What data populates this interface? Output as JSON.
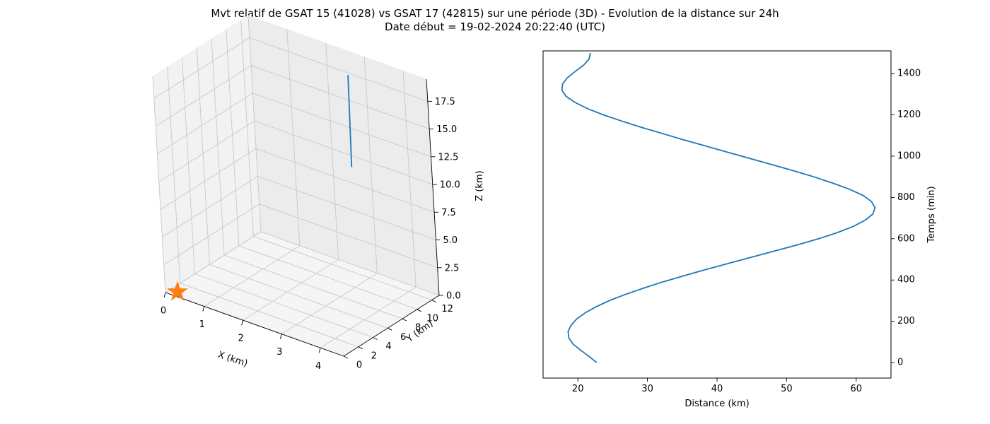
{
  "figure": {
    "title_line1": "Mvt relatif de GSAT 15 (41028) vs GSAT 17 (42815) sur une période (3D) - Evolution de la distance sur 24h",
    "title_line2": "Date début = 19-02-2024 20:22:40 (UTC)"
  },
  "chart_data": [
    {
      "type": "line3d",
      "xlabel": "X (km)",
      "ylabel": "Y (km)",
      "zlabel": "Z (km)",
      "xlim": [
        0,
        4.6
      ],
      "ylim": [
        0,
        13
      ],
      "zlim": [
        0,
        19.5
      ],
      "x_ticks": [
        0,
        1,
        2,
        3,
        4
      ],
      "y_ticks": [
        0,
        2,
        4,
        6,
        8,
        10,
        12
      ],
      "z_ticks": [
        "0.0",
        "2.5",
        "5.0",
        "7.5",
        "10.0",
        "12.5",
        "15.0",
        "17.5"
      ],
      "grid": true,
      "series": [
        {
          "x": [
            4.3,
            2.9
          ],
          "y": [
            4.0,
            11.2
          ],
          "z": [
            15.0,
            18.5
          ],
          "color": "#1f77b4"
        }
      ],
      "marker": {
        "x": 0,
        "y": 0,
        "z": 0,
        "symbol": "star",
        "color": "#ff7f0e"
      }
    },
    {
      "type": "line",
      "xlabel": "Distance (km)",
      "ylabel": "Temps (min)",
      "xlim": [
        15,
        65
      ],
      "ylim": [
        -75,
        1510
      ],
      "x_ticks": [
        20,
        30,
        40,
        50,
        60
      ],
      "y_ticks": [
        0,
        200,
        400,
        600,
        800,
        1000,
        1200,
        1400
      ],
      "y_axis_side": "right",
      "color": "#1f77b4",
      "series": [
        {
          "distance": [
            22.7,
            21.6,
            20.4,
            19.3,
            18.7,
            18.6,
            19.0,
            19.8,
            21.0,
            22.6,
            24.5,
            26.8,
            29.4,
            32.1,
            35.2,
            38.3,
            41.6,
            44.9,
            48.2,
            51.5,
            54.6,
            57.3,
            59.6,
            61.3,
            62.4,
            62.7,
            62.2,
            61.0,
            59.0,
            56.6,
            53.9,
            50.9,
            47.8,
            44.6,
            41.4,
            38.3,
            35.1,
            32.1,
            29.1,
            26.3,
            23.7,
            21.4,
            19.6,
            18.3,
            17.7,
            17.8,
            18.5,
            19.6,
            20.8,
            21.6,
            21.8
          ],
          "time": [
            0,
            30,
            60,
            90,
            120,
            150,
            180,
            210,
            240,
            270,
            300,
            330,
            360,
            390,
            420,
            450,
            480,
            510,
            540,
            570,
            600,
            630,
            660,
            690,
            720,
            750,
            780,
            810,
            840,
            870,
            900,
            930,
            960,
            990,
            1020,
            1050,
            1080,
            1110,
            1140,
            1170,
            1200,
            1230,
            1260,
            1290,
            1320,
            1350,
            1380,
            1410,
            1440,
            1470,
            1500
          ]
        }
      ]
    }
  ]
}
